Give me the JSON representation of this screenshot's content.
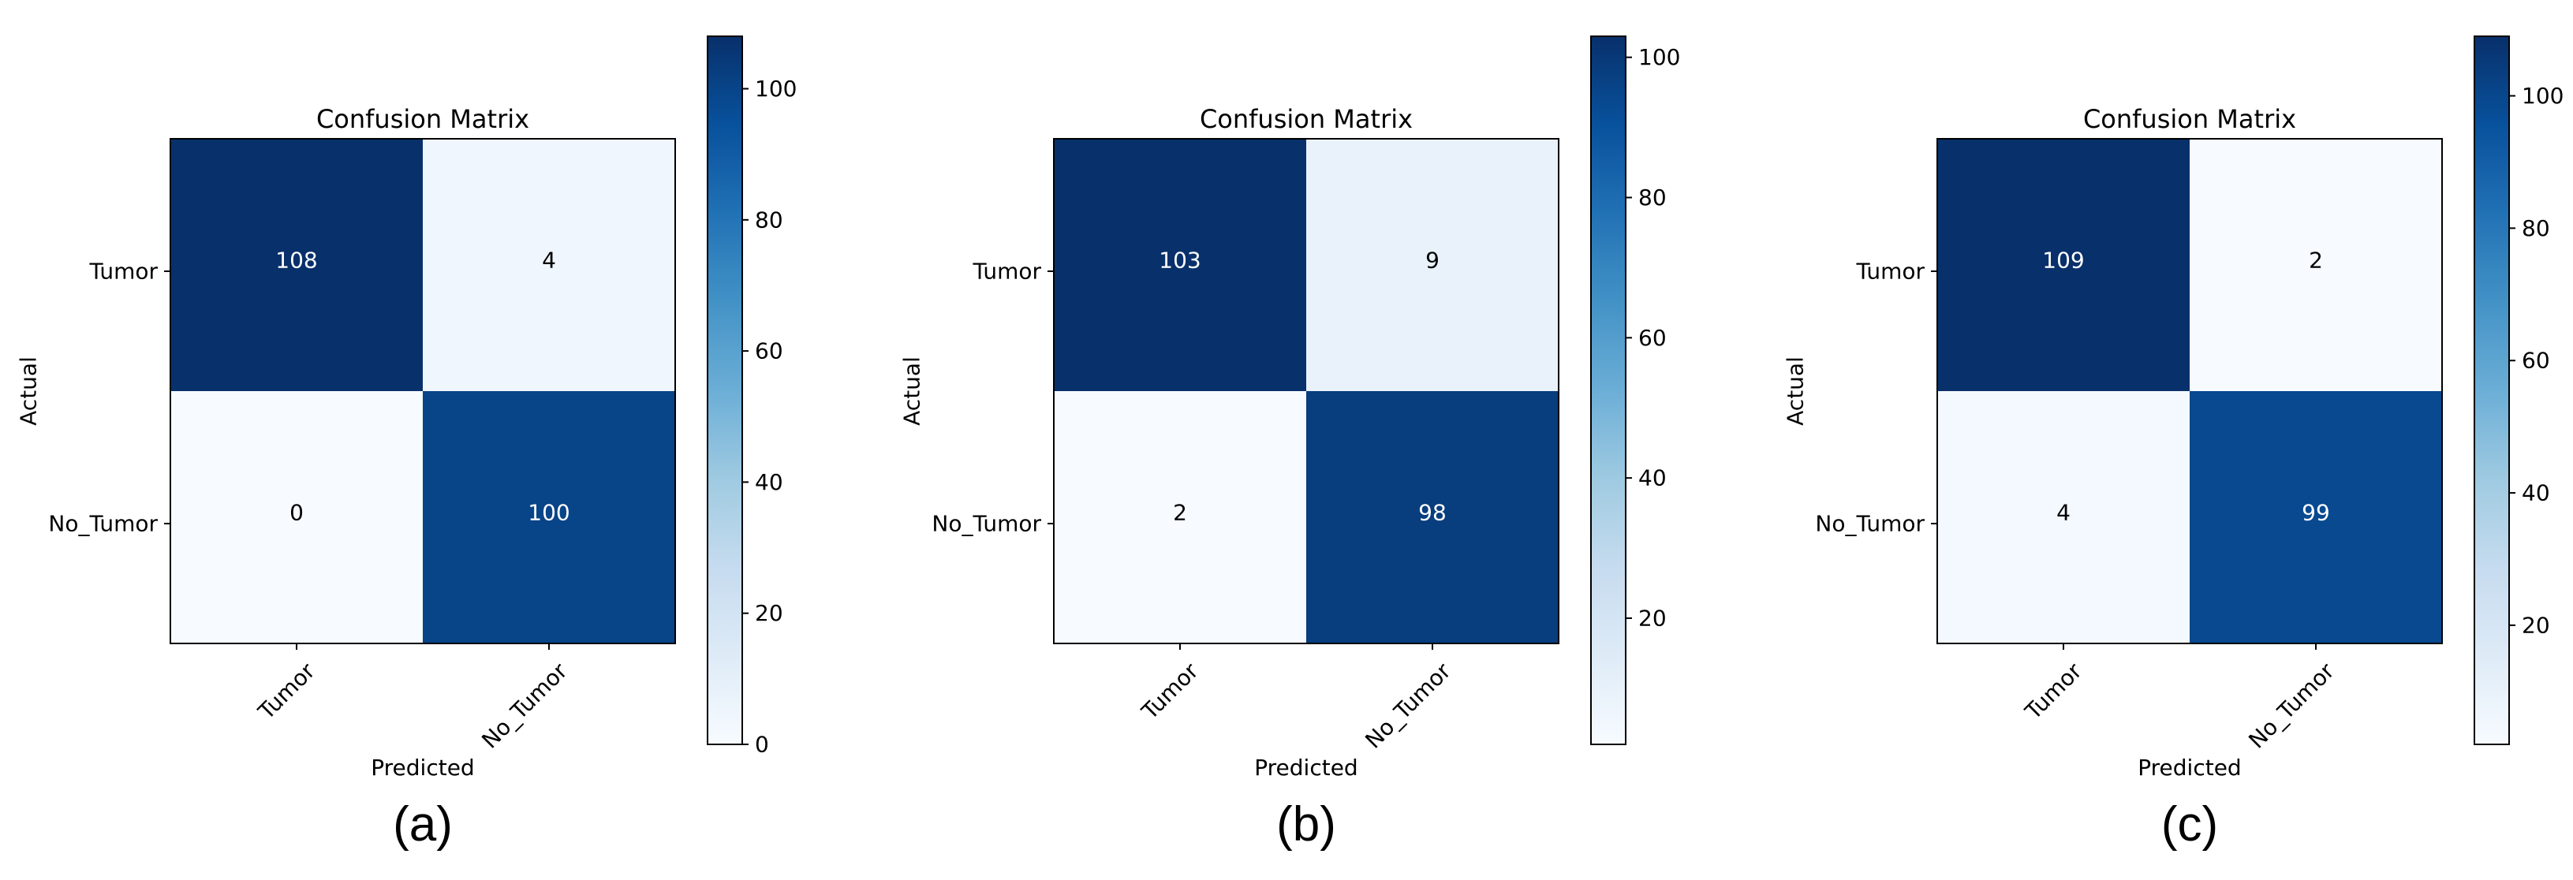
{
  "chart_data": [
    {
      "type": "heatmap",
      "title": "Confusion Matrix",
      "xlabel": "Predicted",
      "ylabel": "Actual",
      "x_categories": [
        "Tumor",
        "No_Tumor"
      ],
      "y_categories": [
        "Tumor",
        "No_Tumor"
      ],
      "values": [
        [
          108,
          4
        ],
        [
          0,
          100
        ]
      ],
      "colorbar": {
        "min": 0,
        "max": 108,
        "ticks": [
          0,
          20,
          40,
          60,
          80,
          100
        ]
      },
      "colormap": "Blues",
      "caption": "(a)"
    },
    {
      "type": "heatmap",
      "title": "Confusion Matrix",
      "xlabel": "Predicted",
      "ylabel": "Actual",
      "x_categories": [
        "Tumor",
        "No_Tumor"
      ],
      "y_categories": [
        "Tumor",
        "No_Tumor"
      ],
      "values": [
        [
          103,
          9
        ],
        [
          2,
          98
        ]
      ],
      "colorbar": {
        "min": 2,
        "max": 103,
        "ticks": [
          20,
          40,
          60,
          80,
          100
        ]
      },
      "colormap": "Blues",
      "caption": "(b)"
    },
    {
      "type": "heatmap",
      "title": "Confusion Matrix",
      "xlabel": "Predicted",
      "ylabel": "Actual",
      "x_categories": [
        "Tumor",
        "No_Tumor"
      ],
      "y_categories": [
        "Tumor",
        "No_Tumor"
      ],
      "values": [
        [
          109,
          2
        ],
        [
          4,
          99
        ]
      ],
      "colorbar": {
        "min": 2,
        "max": 109,
        "ticks": [
          20,
          40,
          60,
          80,
          100
        ]
      },
      "colormap": "Blues",
      "caption": "(c)"
    }
  ]
}
